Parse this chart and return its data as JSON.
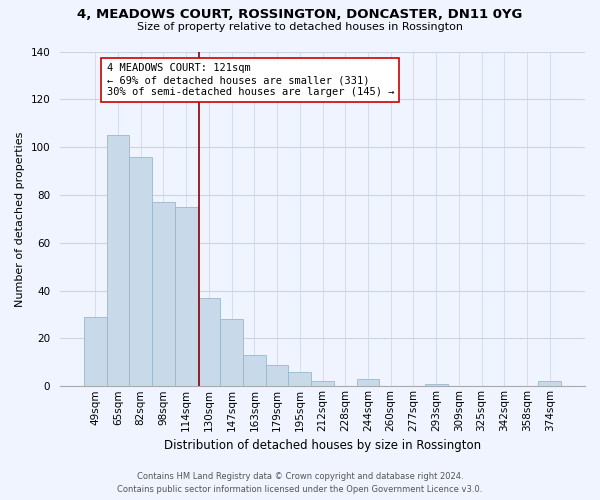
{
  "title": "4, MEADOWS COURT, ROSSINGTON, DONCASTER, DN11 0YG",
  "subtitle": "Size of property relative to detached houses in Rossington",
  "xlabel": "Distribution of detached houses by size in Rossington",
  "ylabel": "Number of detached properties",
  "bar_labels": [
    "49sqm",
    "65sqm",
    "82sqm",
    "98sqm",
    "114sqm",
    "130sqm",
    "147sqm",
    "163sqm",
    "179sqm",
    "195sqm",
    "212sqm",
    "228sqm",
    "244sqm",
    "260sqm",
    "277sqm",
    "293sqm",
    "309sqm",
    "325sqm",
    "342sqm",
    "358sqm",
    "374sqm"
  ],
  "bar_values": [
    29,
    105,
    96,
    77,
    75,
    37,
    28,
    13,
    9,
    6,
    2,
    0,
    3,
    0,
    0,
    1,
    0,
    0,
    0,
    0,
    2
  ],
  "bar_color": "#c8daea",
  "bar_edgecolor": "#9ab8cc",
  "vline_x_index": 4.55,
  "vline_color": "#8b0000",
  "annotation_text": "4 MEADOWS COURT: 121sqm\n← 69% of detached houses are smaller (331)\n30% of semi-detached houses are larger (145) →",
  "annotation_box_color": "#ffffff",
  "annotation_box_edgecolor": "#cc0000",
  "ylim": [
    0,
    140
  ],
  "yticks": [
    0,
    20,
    40,
    60,
    80,
    100,
    120,
    140
  ],
  "footer_line1": "Contains HM Land Registry data © Crown copyright and database right 2024.",
  "footer_line2": "Contains public sector information licensed under the Open Government Licence v3.0.",
  "bg_color": "#f0f4ff",
  "grid_color": "#c8d4e8",
  "title_fontsize": 9.5,
  "subtitle_fontsize": 8.0,
  "xlabel_fontsize": 8.5,
  "ylabel_fontsize": 8.0,
  "tick_fontsize": 7.5,
  "annot_fontsize": 7.5
}
